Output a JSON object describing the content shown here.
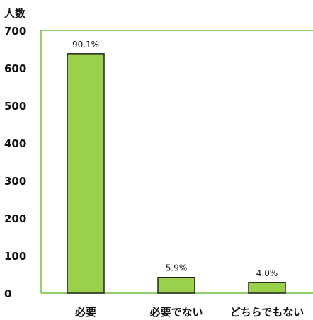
{
  "chart_data": {
    "type": "bar",
    "ylabel": "人数",
    "xlabel": "",
    "ylim": [
      0,
      700
    ],
    "yticks": [
      0,
      100,
      200,
      300,
      400,
      500,
      600,
      700
    ],
    "categories": [
      "必要",
      "必要でない",
      "どちらでもない"
    ],
    "values": [
      638,
      42,
      28
    ],
    "data_labels": [
      "90.1%",
      "5.9%",
      "4.0%"
    ],
    "grid": false,
    "legend": "none"
  },
  "colors": {
    "bar_fill": "#99d14a",
    "bar_stroke": "#222222",
    "frame": "#6fbf3f"
  }
}
